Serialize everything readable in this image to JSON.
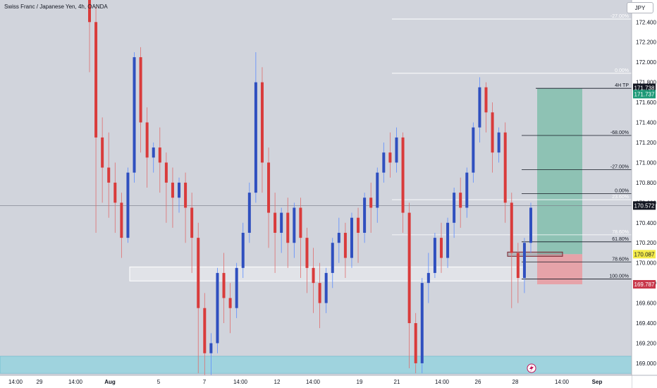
{
  "header": {
    "title": "Swiss Franc / Japanese Yen, 4h, OANDA",
    "currency_button": "JPY"
  },
  "colors": {
    "background": "#d1d4dc",
    "up_candle": "#2f4fbf",
    "down_candle": "#d93b3b",
    "wick_up": "#5b8cff",
    "wick_down": "#e06d6d",
    "target_zone": "#8ec2b4",
    "stop_zone": "#e6a3a9",
    "support_band": "#9fd3de",
    "tag_dark": "#131722",
    "tag_green": "#1d9977",
    "tag_yellow": "#f5ec4a",
    "tag_red": "#c8374a"
  },
  "chart_data": {
    "type": "candlestick",
    "symbol": "CHF/JPY",
    "timeframe": "4h",
    "source": "OANDA",
    "ylim": [
      168.88,
      172.62
    ],
    "y_ticks": [
      "172.400",
      "172.200",
      "172.000",
      "171.800",
      "171.600",
      "171.400",
      "171.200",
      "171.000",
      "170.800",
      "170.600",
      "170.400",
      "170.200",
      "170.000",
      "169.800",
      "169.600",
      "169.400",
      "169.200",
      "169.000"
    ],
    "x_tick_labels": [
      "14:00",
      "29",
      "14:00",
      "Aug",
      "5",
      "7",
      "14:00",
      "12",
      "14:00",
      "19",
      "21",
      "14:00",
      "26",
      "28",
      "14:00",
      "Sep"
    ],
    "price_tags": {
      "high_marker": "171.738",
      "target": "171.737",
      "current": "170.572",
      "entry": "170.087",
      "stop": "169.787"
    },
    "fib_upper": [
      {
        "label": "-27.00%",
        "price": 172.43
      },
      {
        "label": "0.00%",
        "price": 171.89
      }
    ],
    "fib_lower": [
      {
        "label": "4H TP",
        "price": 171.74
      },
      {
        "label": "-68.00%",
        "price": 171.27
      },
      {
        "label": "-27.00%",
        "price": 170.93
      },
      {
        "label": "0.00%",
        "price": 170.69
      },
      {
        "label": "61.80%",
        "price": 170.21
      },
      {
        "label": "78.60%",
        "price": 170.01
      },
      {
        "label": "100.00%",
        "price": 169.84
      }
    ],
    "fib_faint": [
      {
        "label": "23.60%",
        "price": 170.63
      },
      {
        "label": "78.60%",
        "price": 170.28
      }
    ],
    "position": {
      "entry": 170.087,
      "target": 171.737,
      "stop": 169.787
    },
    "current_price": 170.572,
    "support_band": [
      168.9,
      169.07
    ],
    "demand_box": [
      169.82,
      169.96
    ],
    "candles": [
      {
        "o": 172.9,
        "h": 172.95,
        "c": 172.4,
        "l": 171.9
      },
      {
        "o": 172.4,
        "h": 172.55,
        "c": 171.25,
        "l": 170.3
      },
      {
        "o": 171.25,
        "h": 171.45,
        "c": 170.95,
        "l": 170.6
      },
      {
        "o": 170.95,
        "h": 171.3,
        "c": 170.8,
        "l": 170.45
      },
      {
        "o": 170.8,
        "h": 171.0,
        "c": 170.6,
        "l": 170.3
      },
      {
        "o": 170.6,
        "h": 170.7,
        "c": 170.25,
        "l": 170.05
      },
      {
        "o": 170.25,
        "h": 170.95,
        "c": 170.9,
        "l": 170.2
      },
      {
        "o": 170.9,
        "h": 172.1,
        "c": 172.05,
        "l": 170.8
      },
      {
        "o": 172.05,
        "h": 172.15,
        "c": 171.4,
        "l": 171.1
      },
      {
        "o": 171.4,
        "h": 171.55,
        "c": 171.05,
        "l": 170.75
      },
      {
        "o": 171.05,
        "h": 171.2,
        "c": 171.15,
        "l": 170.9
      },
      {
        "o": 171.15,
        "h": 171.35,
        "c": 171.0,
        "l": 170.7
      },
      {
        "o": 171.0,
        "h": 171.1,
        "c": 170.8,
        "l": 170.4
      },
      {
        "o": 170.8,
        "h": 170.95,
        "c": 170.65,
        "l": 170.35
      },
      {
        "o": 170.65,
        "h": 170.85,
        "c": 170.8,
        "l": 170.5
      },
      {
        "o": 170.8,
        "h": 170.9,
        "c": 170.55,
        "l": 170.2
      },
      {
        "o": 170.55,
        "h": 170.7,
        "c": 170.25,
        "l": 169.9
      },
      {
        "o": 170.25,
        "h": 170.4,
        "c": 169.55,
        "l": 168.9
      },
      {
        "o": 169.55,
        "h": 169.7,
        "c": 169.1,
        "l": 168.8
      },
      {
        "o": 169.1,
        "h": 169.3,
        "c": 169.2,
        "l": 168.85
      },
      {
        "o": 169.2,
        "h": 169.95,
        "c": 169.9,
        "l": 169.1
      },
      {
        "o": 169.9,
        "h": 170.1,
        "c": 169.65,
        "l": 169.4
      },
      {
        "o": 169.65,
        "h": 169.8,
        "c": 169.55,
        "l": 169.3
      },
      {
        "o": 169.55,
        "h": 170.0,
        "c": 169.95,
        "l": 169.45
      },
      {
        "o": 169.95,
        "h": 170.4,
        "c": 170.3,
        "l": 169.85
      },
      {
        "o": 170.3,
        "h": 170.8,
        "c": 170.7,
        "l": 170.2
      },
      {
        "o": 170.7,
        "h": 172.1,
        "c": 171.8,
        "l": 170.6
      },
      {
        "o": 171.8,
        "h": 171.95,
        "c": 171.0,
        "l": 170.7
      },
      {
        "o": 171.0,
        "h": 171.15,
        "c": 170.5,
        "l": 170.15
      },
      {
        "o": 170.5,
        "h": 170.7,
        "c": 170.3,
        "l": 169.9
      },
      {
        "o": 170.3,
        "h": 170.55,
        "c": 170.5,
        "l": 170.1
      },
      {
        "o": 170.5,
        "h": 170.65,
        "c": 170.2,
        "l": 169.95
      },
      {
        "o": 170.2,
        "h": 170.6,
        "c": 170.55,
        "l": 170.05
      },
      {
        "o": 170.55,
        "h": 170.65,
        "c": 170.25,
        "l": 169.85
      },
      {
        "o": 170.25,
        "h": 170.35,
        "c": 169.95,
        "l": 169.7
      },
      {
        "o": 169.95,
        "h": 170.15,
        "c": 169.8,
        "l": 169.5
      },
      {
        "o": 169.8,
        "h": 170.0,
        "c": 169.6,
        "l": 169.35
      },
      {
        "o": 169.6,
        "h": 169.95,
        "c": 169.9,
        "l": 169.5
      },
      {
        "o": 169.9,
        "h": 170.25,
        "c": 170.2,
        "l": 169.75
      },
      {
        "o": 170.2,
        "h": 170.45,
        "c": 170.3,
        "l": 170.0
      },
      {
        "o": 170.3,
        "h": 170.4,
        "c": 170.05,
        "l": 169.85
      },
      {
        "o": 170.05,
        "h": 170.5,
        "c": 170.45,
        "l": 169.95
      },
      {
        "o": 170.45,
        "h": 170.55,
        "c": 170.3,
        "l": 170.0
      },
      {
        "o": 170.3,
        "h": 170.7,
        "c": 170.65,
        "l": 170.2
      },
      {
        "o": 170.65,
        "h": 170.8,
        "c": 170.55,
        "l": 170.3
      },
      {
        "o": 170.55,
        "h": 170.95,
        "c": 170.9,
        "l": 170.4
      },
      {
        "o": 170.9,
        "h": 171.2,
        "c": 171.1,
        "l": 170.8
      },
      {
        "o": 171.1,
        "h": 171.3,
        "c": 171.0,
        "l": 170.85
      },
      {
        "o": 171.0,
        "h": 171.35,
        "c": 171.25,
        "l": 170.9
      },
      {
        "o": 171.25,
        "h": 171.3,
        "c": 170.5,
        "l": 170.3
      },
      {
        "o": 170.5,
        "h": 170.6,
        "c": 169.4,
        "l": 168.95
      },
      {
        "o": 169.4,
        "h": 169.5,
        "c": 169.0,
        "l": 168.9
      },
      {
        "o": 169.0,
        "h": 169.85,
        "c": 169.8,
        "l": 168.9
      },
      {
        "o": 169.8,
        "h": 170.1,
        "c": 169.9,
        "l": 169.6
      },
      {
        "o": 169.9,
        "h": 170.3,
        "c": 170.25,
        "l": 169.85
      },
      {
        "o": 170.25,
        "h": 170.4,
        "c": 170.05,
        "l": 169.9
      },
      {
        "o": 170.05,
        "h": 170.45,
        "c": 170.4,
        "l": 169.95
      },
      {
        "o": 170.4,
        "h": 170.75,
        "c": 170.7,
        "l": 170.25
      },
      {
        "o": 170.7,
        "h": 170.85,
        "c": 170.55,
        "l": 170.35
      },
      {
        "o": 170.55,
        "h": 170.95,
        "c": 170.9,
        "l": 170.45
      },
      {
        "o": 170.9,
        "h": 171.4,
        "c": 171.35,
        "l": 170.8
      },
      {
        "o": 171.35,
        "h": 171.85,
        "c": 171.75,
        "l": 171.2
      },
      {
        "o": 171.75,
        "h": 171.8,
        "c": 171.5,
        "l": 171.3
      },
      {
        "o": 171.5,
        "h": 171.6,
        "c": 171.1,
        "l": 170.9
      },
      {
        "o": 171.1,
        "h": 171.35,
        "c": 171.3,
        "l": 171.0
      },
      {
        "o": 171.3,
        "h": 171.4,
        "c": 170.6,
        "l": 170.4
      },
      {
        "o": 170.6,
        "h": 170.7,
        "c": 170.1,
        "l": 169.55
      },
      {
        "o": 170.1,
        "h": 170.2,
        "c": 169.85,
        "l": 169.6
      },
      {
        "o": 169.85,
        "h": 170.25,
        "c": 170.2,
        "l": 169.7
      },
      {
        "o": 170.2,
        "h": 170.6,
        "c": 170.55,
        "l": 170.1
      }
    ]
  }
}
